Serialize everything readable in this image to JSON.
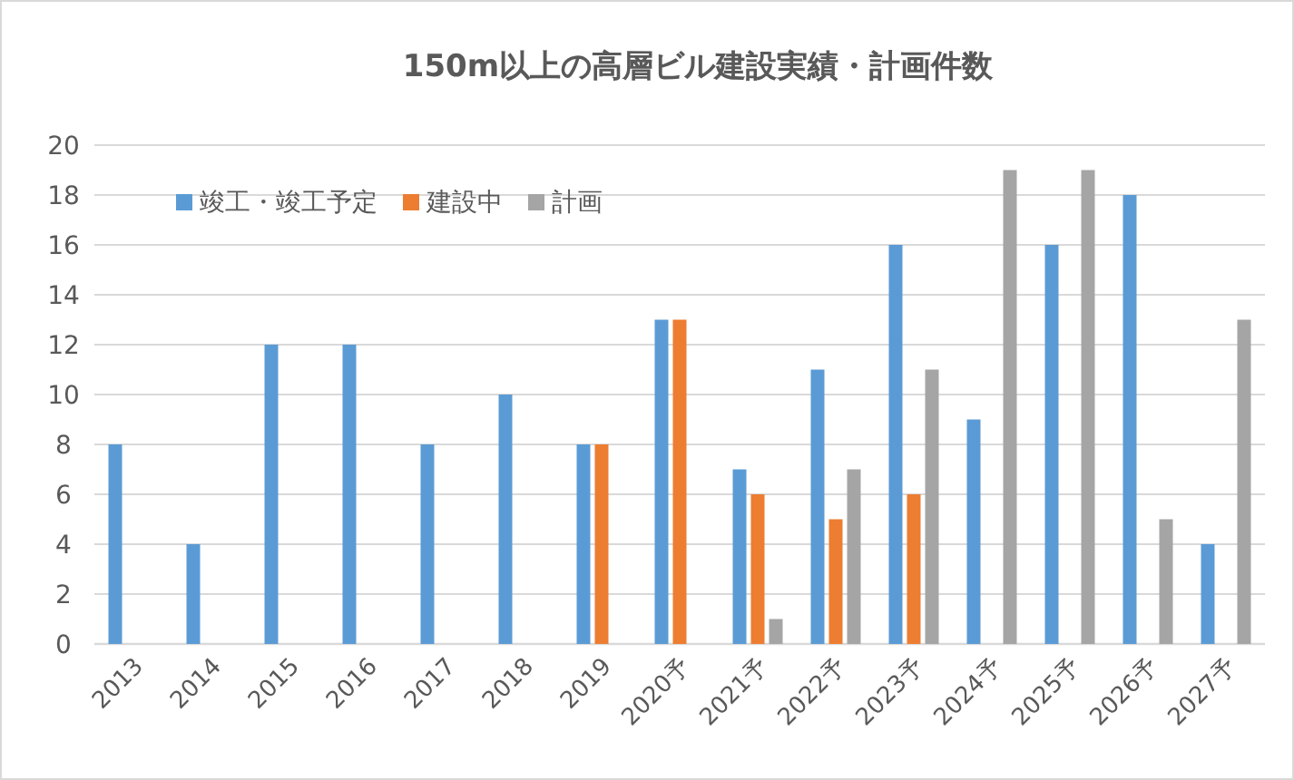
{
  "chart_data": {
    "type": "bar",
    "title": "150m以上の高層ビル建設実績・計画件数",
    "categories": [
      "2013",
      "2014",
      "2015",
      "2016",
      "2017",
      "2018",
      "2019",
      "2020予",
      "2021予",
      "2022予",
      "2023予",
      "2024予",
      "2025予",
      "2026予",
      "2027予"
    ],
    "series": [
      {
        "name": "竣工・竣工予定",
        "color": "#5b9bd5",
        "values": [
          8,
          4,
          12,
          12,
          8,
          10,
          8,
          13,
          7,
          11,
          16,
          9,
          16,
          18,
          4
        ]
      },
      {
        "name": "建設中",
        "color": "#ed7d31",
        "values": [
          null,
          null,
          null,
          null,
          null,
          null,
          8,
          13,
          6,
          5,
          6,
          null,
          null,
          null,
          null
        ]
      },
      {
        "name": "計画",
        "color": "#a5a5a5",
        "values": [
          null,
          null,
          null,
          null,
          null,
          null,
          null,
          null,
          1,
          7,
          11,
          19,
          19,
          5,
          13
        ]
      }
    ],
    "ylim": [
      0,
      20
    ],
    "yticks": [
      0,
      2,
      4,
      6,
      8,
      10,
      12,
      14,
      16,
      18,
      20
    ],
    "grid": "y",
    "legend": "top left"
  }
}
